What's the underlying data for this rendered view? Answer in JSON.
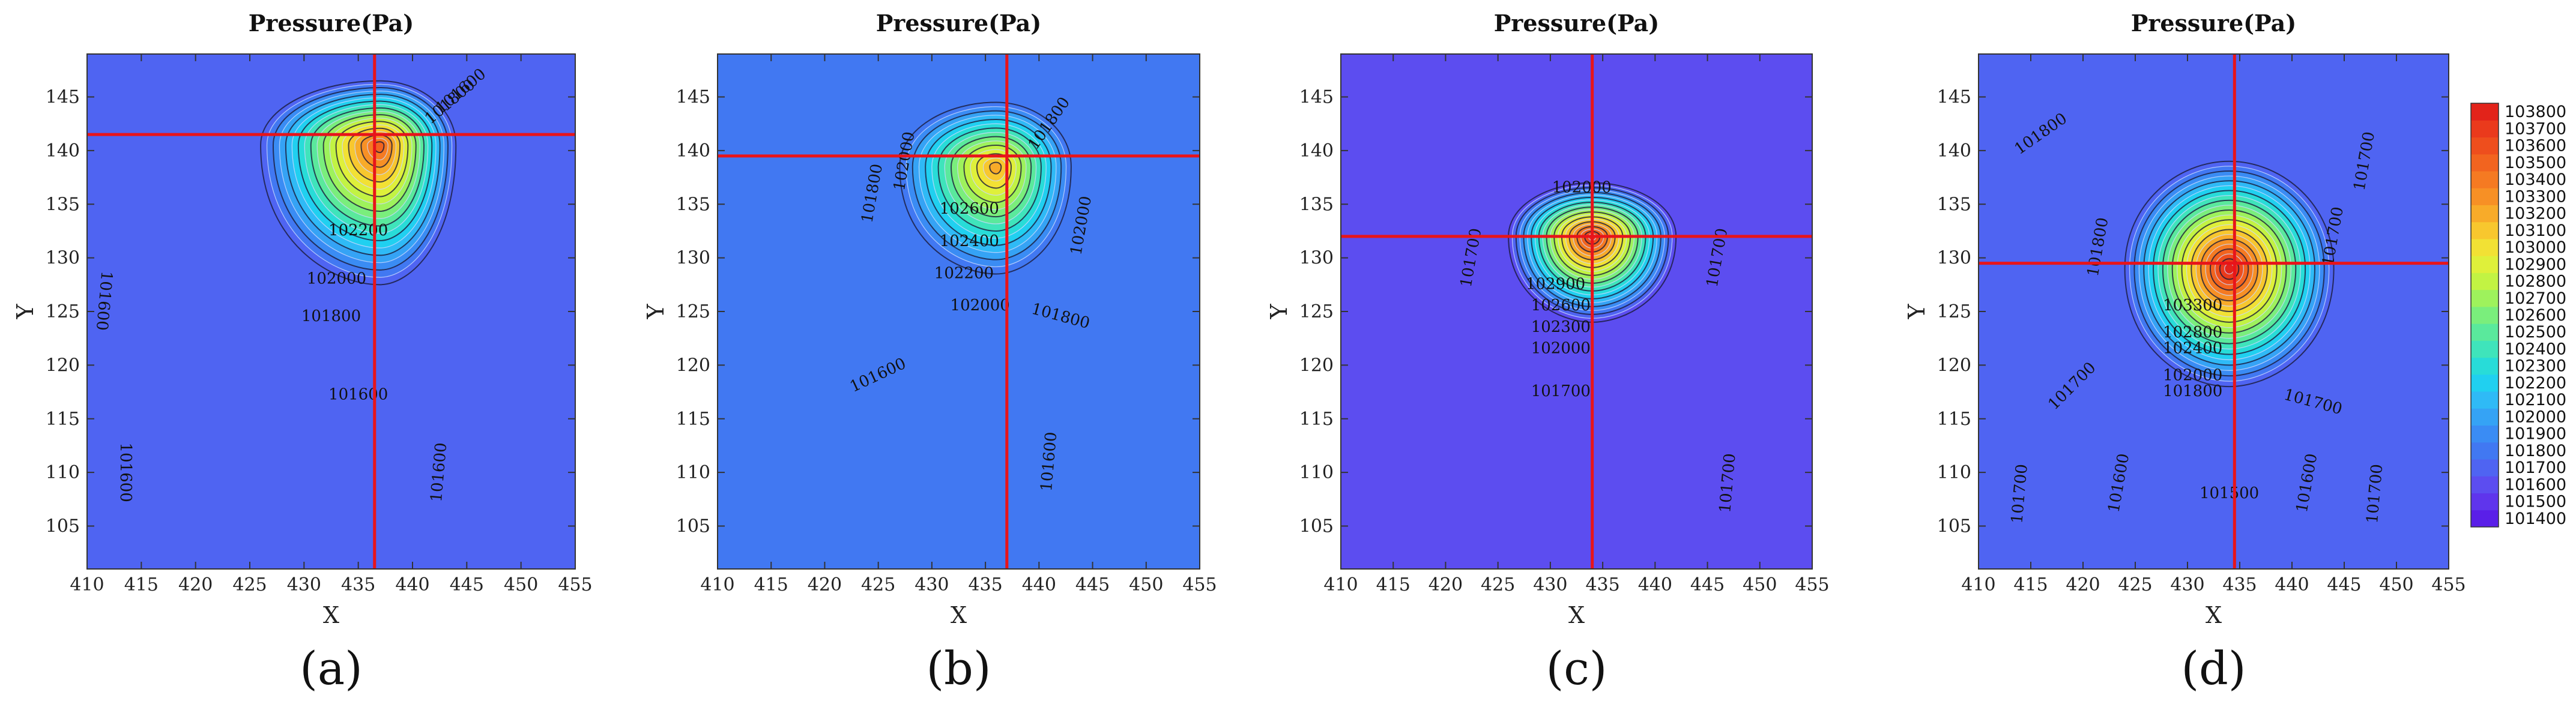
{
  "chart_data": {
    "type": "heatmap",
    "title": "Pressure(Pa)",
    "legend": {
      "position": "right",
      "levels": [
        101400,
        101500,
        101600,
        101700,
        101800,
        101900,
        102000,
        102100,
        102200,
        102300,
        102400,
        102500,
        102600,
        102700,
        102800,
        102900,
        103000,
        103100,
        103200,
        103300,
        103400,
        103500,
        103600,
        103700,
        103800
      ],
      "labels": [
        "101400",
        "101500",
        "101600",
        "101700",
        "101800",
        "101900",
        "102000",
        "102100",
        "102200",
        "102300",
        "102400",
        "102500",
        "102600",
        "102700",
        "102800",
        "102900",
        "103000",
        "103100",
        "103200",
        "103300",
        "103400",
        "103500",
        "103600",
        "103700",
        "103800"
      ],
      "colors": [
        "#5a1fe8",
        "#5f35ec",
        "#5c4df0",
        "#4f64f2",
        "#4178f2",
        "#3a8cf4",
        "#35a3f5",
        "#2fbaf6",
        "#20d0f0",
        "#28dcd8",
        "#3fe4bb",
        "#5ae99c",
        "#7aee7c",
        "#9ef25c",
        "#c2f343",
        "#dff03a",
        "#f2e134",
        "#f8c72e",
        "#f8ab29",
        "#f79025",
        "#f57a22",
        "#f2641f",
        "#ee4e1d",
        "#ea3a1c",
        "#e2231a"
      ]
    },
    "panels": [
      {
        "label": "(a)",
        "title": "Pressure(Pa)",
        "xlabel": "X",
        "ylabel": "Y",
        "xlim": [
          410,
          455
        ],
        "ylim": [
          101,
          149
        ],
        "xticks": [
          "410",
          "415",
          "420",
          "425",
          "430",
          "435",
          "440",
          "445",
          "450",
          "455"
        ],
        "yticks": [
          "105",
          "110",
          "115",
          "120",
          "125",
          "130",
          "135",
          "140",
          "145"
        ],
        "background": 101700,
        "peak": {
          "x": 437,
          "y": 140.5,
          "value": 103500
        },
        "spread": {
          "xl": 11,
          "xr": 7,
          "yu": 6,
          "yd": 13
        },
        "crosshair": {
          "x": 436.5,
          "y": 141.5
        },
        "contour_labels": [
          {
            "text": "101600",
            "x": 411.5,
            "y": 126,
            "rot": 95
          },
          {
            "text": "101600",
            "x": 413.5,
            "y": 110,
            "rot": 90
          },
          {
            "text": "101600",
            "x": 435,
            "y": 117.2,
            "rot": 0
          },
          {
            "text": "101600",
            "x": 442.5,
            "y": 110,
            "rot": -85
          },
          {
            "text": "101800",
            "x": 432.5,
            "y": 124.5,
            "rot": 0
          },
          {
            "text": "102000",
            "x": 433,
            "y": 128,
            "rot": 0
          },
          {
            "text": "102200",
            "x": 435,
            "y": 132.5,
            "rot": 0
          },
          {
            "text": "101800",
            "x": 443.5,
            "y": 144.5,
            "rot": -40
          },
          {
            "text": "101600",
            "x": 444.5,
            "y": 145.5,
            "rot": -40
          }
        ]
      },
      {
        "label": "(b)",
        "title": "Pressure(Pa)",
        "xlabel": "X",
        "ylabel": "Y",
        "xlim": [
          410,
          455
        ],
        "ylim": [
          101,
          149
        ],
        "xticks": [
          "410",
          "415",
          "420",
          "425",
          "430",
          "435",
          "440",
          "445",
          "450",
          "455"
        ],
        "yticks": [
          "105",
          "110",
          "115",
          "120",
          "125",
          "130",
          "135",
          "140",
          "145"
        ],
        "background": 101800,
        "peak": {
          "x": 436,
          "y": 138.5,
          "value": 103200
        },
        "spread": {
          "xl": 9,
          "xr": 7,
          "yu": 6,
          "yd": 10
        },
        "crosshair": {
          "x": 437,
          "y": 139.5
        },
        "contour_labels": [
          {
            "text": "101800",
            "x": 424.5,
            "y": 136,
            "rot": -80
          },
          {
            "text": "102000",
            "x": 427.5,
            "y": 139,
            "rot": -80
          },
          {
            "text": "101800",
            "x": 441,
            "y": 142.5,
            "rot": -55
          },
          {
            "text": "102600",
            "x": 433.5,
            "y": 134.5,
            "rot": 0
          },
          {
            "text": "102400",
            "x": 433.5,
            "y": 131.5,
            "rot": 0
          },
          {
            "text": "102200",
            "x": 433,
            "y": 128.5,
            "rot": 0
          },
          {
            "text": "102000",
            "x": 444,
            "y": 133,
            "rot": -80
          },
          {
            "text": "102000",
            "x": 434.5,
            "y": 125.5,
            "rot": 0
          },
          {
            "text": "101800",
            "x": 442,
            "y": 124.5,
            "rot": 15
          },
          {
            "text": "101600",
            "x": 425,
            "y": 119,
            "rot": -25
          },
          {
            "text": "101600",
            "x": 441,
            "y": 111,
            "rot": -85
          }
        ]
      },
      {
        "label": "(c)",
        "title": "Pressure(Pa)",
        "xlabel": "X",
        "ylabel": "Y",
        "xlim": [
          410,
          455
        ],
        "ylim": [
          101,
          149
        ],
        "xticks": [
          "410",
          "415",
          "420",
          "425",
          "430",
          "435",
          "440",
          "445",
          "450",
          "455"
        ],
        "yticks": [
          "105",
          "110",
          "115",
          "120",
          "125",
          "130",
          "135",
          "140",
          "145"
        ],
        "background": 101650,
        "peak": {
          "x": 434,
          "y": 132,
          "value": 103700
        },
        "spread": {
          "xl": 8,
          "xr": 8,
          "yu": 5,
          "yd": 8
        },
        "crosshair": {
          "x": 434,
          "y": 132
        },
        "contour_labels": [
          {
            "text": "102000",
            "x": 433,
            "y": 136.5,
            "rot": 0
          },
          {
            "text": "101700",
            "x": 422.5,
            "y": 130,
            "rot": -80
          },
          {
            "text": "101700",
            "x": 446,
            "y": 130,
            "rot": -80
          },
          {
            "text": "102900",
            "x": 430.5,
            "y": 127.5,
            "rot": 0
          },
          {
            "text": "102600",
            "x": 431,
            "y": 125.5,
            "rot": 0
          },
          {
            "text": "102300",
            "x": 431,
            "y": 123.5,
            "rot": 0
          },
          {
            "text": "102000",
            "x": 431,
            "y": 121.5,
            "rot": 0
          },
          {
            "text": "101700",
            "x": 431,
            "y": 117.5,
            "rot": 0
          },
          {
            "text": "101700",
            "x": 447,
            "y": 109,
            "rot": -85
          }
        ]
      },
      {
        "label": "(d)",
        "title": "Pressure(Pa)",
        "xlabel": "X",
        "ylabel": "Y",
        "xlim": [
          410,
          455
        ],
        "ylim": [
          101,
          149
        ],
        "xticks": [
          "410",
          "415",
          "420",
          "425",
          "430",
          "435",
          "440",
          "445",
          "450",
          "455"
        ],
        "yticks": [
          "105",
          "110",
          "115",
          "120",
          "125",
          "130",
          "135",
          "140",
          "145"
        ],
        "background": 101750,
        "peak": {
          "x": 434,
          "y": 129,
          "value": 103800
        },
        "spread": {
          "xl": 10,
          "xr": 10,
          "yu": 10,
          "yd": 11
        },
        "crosshair": {
          "x": 434.5,
          "y": 129.5
        },
        "contour_labels": [
          {
            "text": "101800",
            "x": 416,
            "y": 141.5,
            "rot": -35
          },
          {
            "text": "101700",
            "x": 447,
            "y": 139,
            "rot": -80
          },
          {
            "text": "101800",
            "x": 421.5,
            "y": 131,
            "rot": -80
          },
          {
            "text": "101700",
            "x": 444,
            "y": 132,
            "rot": -80
          },
          {
            "text": "103300",
            "x": 430.5,
            "y": 125.5,
            "rot": 0
          },
          {
            "text": "102800",
            "x": 430.5,
            "y": 123,
            "rot": 0
          },
          {
            "text": "102400",
            "x": 430.5,
            "y": 121.5,
            "rot": 0
          },
          {
            "text": "102000",
            "x": 430.5,
            "y": 119,
            "rot": 0
          },
          {
            "text": "101800",
            "x": 430.5,
            "y": 117.5,
            "rot": 0
          },
          {
            "text": "101700",
            "x": 419,
            "y": 118,
            "rot": -45
          },
          {
            "text": "101700",
            "x": 442,
            "y": 116.5,
            "rot": 15
          },
          {
            "text": "101600",
            "x": 423.5,
            "y": 109,
            "rot": -80
          },
          {
            "text": "101600",
            "x": 441.5,
            "y": 109,
            "rot": -80
          },
          {
            "text": "101700",
            "x": 414,
            "y": 108,
            "rot": -85
          },
          {
            "text": "101700",
            "x": 448,
            "y": 108,
            "rot": -85
          },
          {
            "text": "101500",
            "x": 434,
            "y": 108,
            "rot": 0
          }
        ]
      }
    ]
  }
}
